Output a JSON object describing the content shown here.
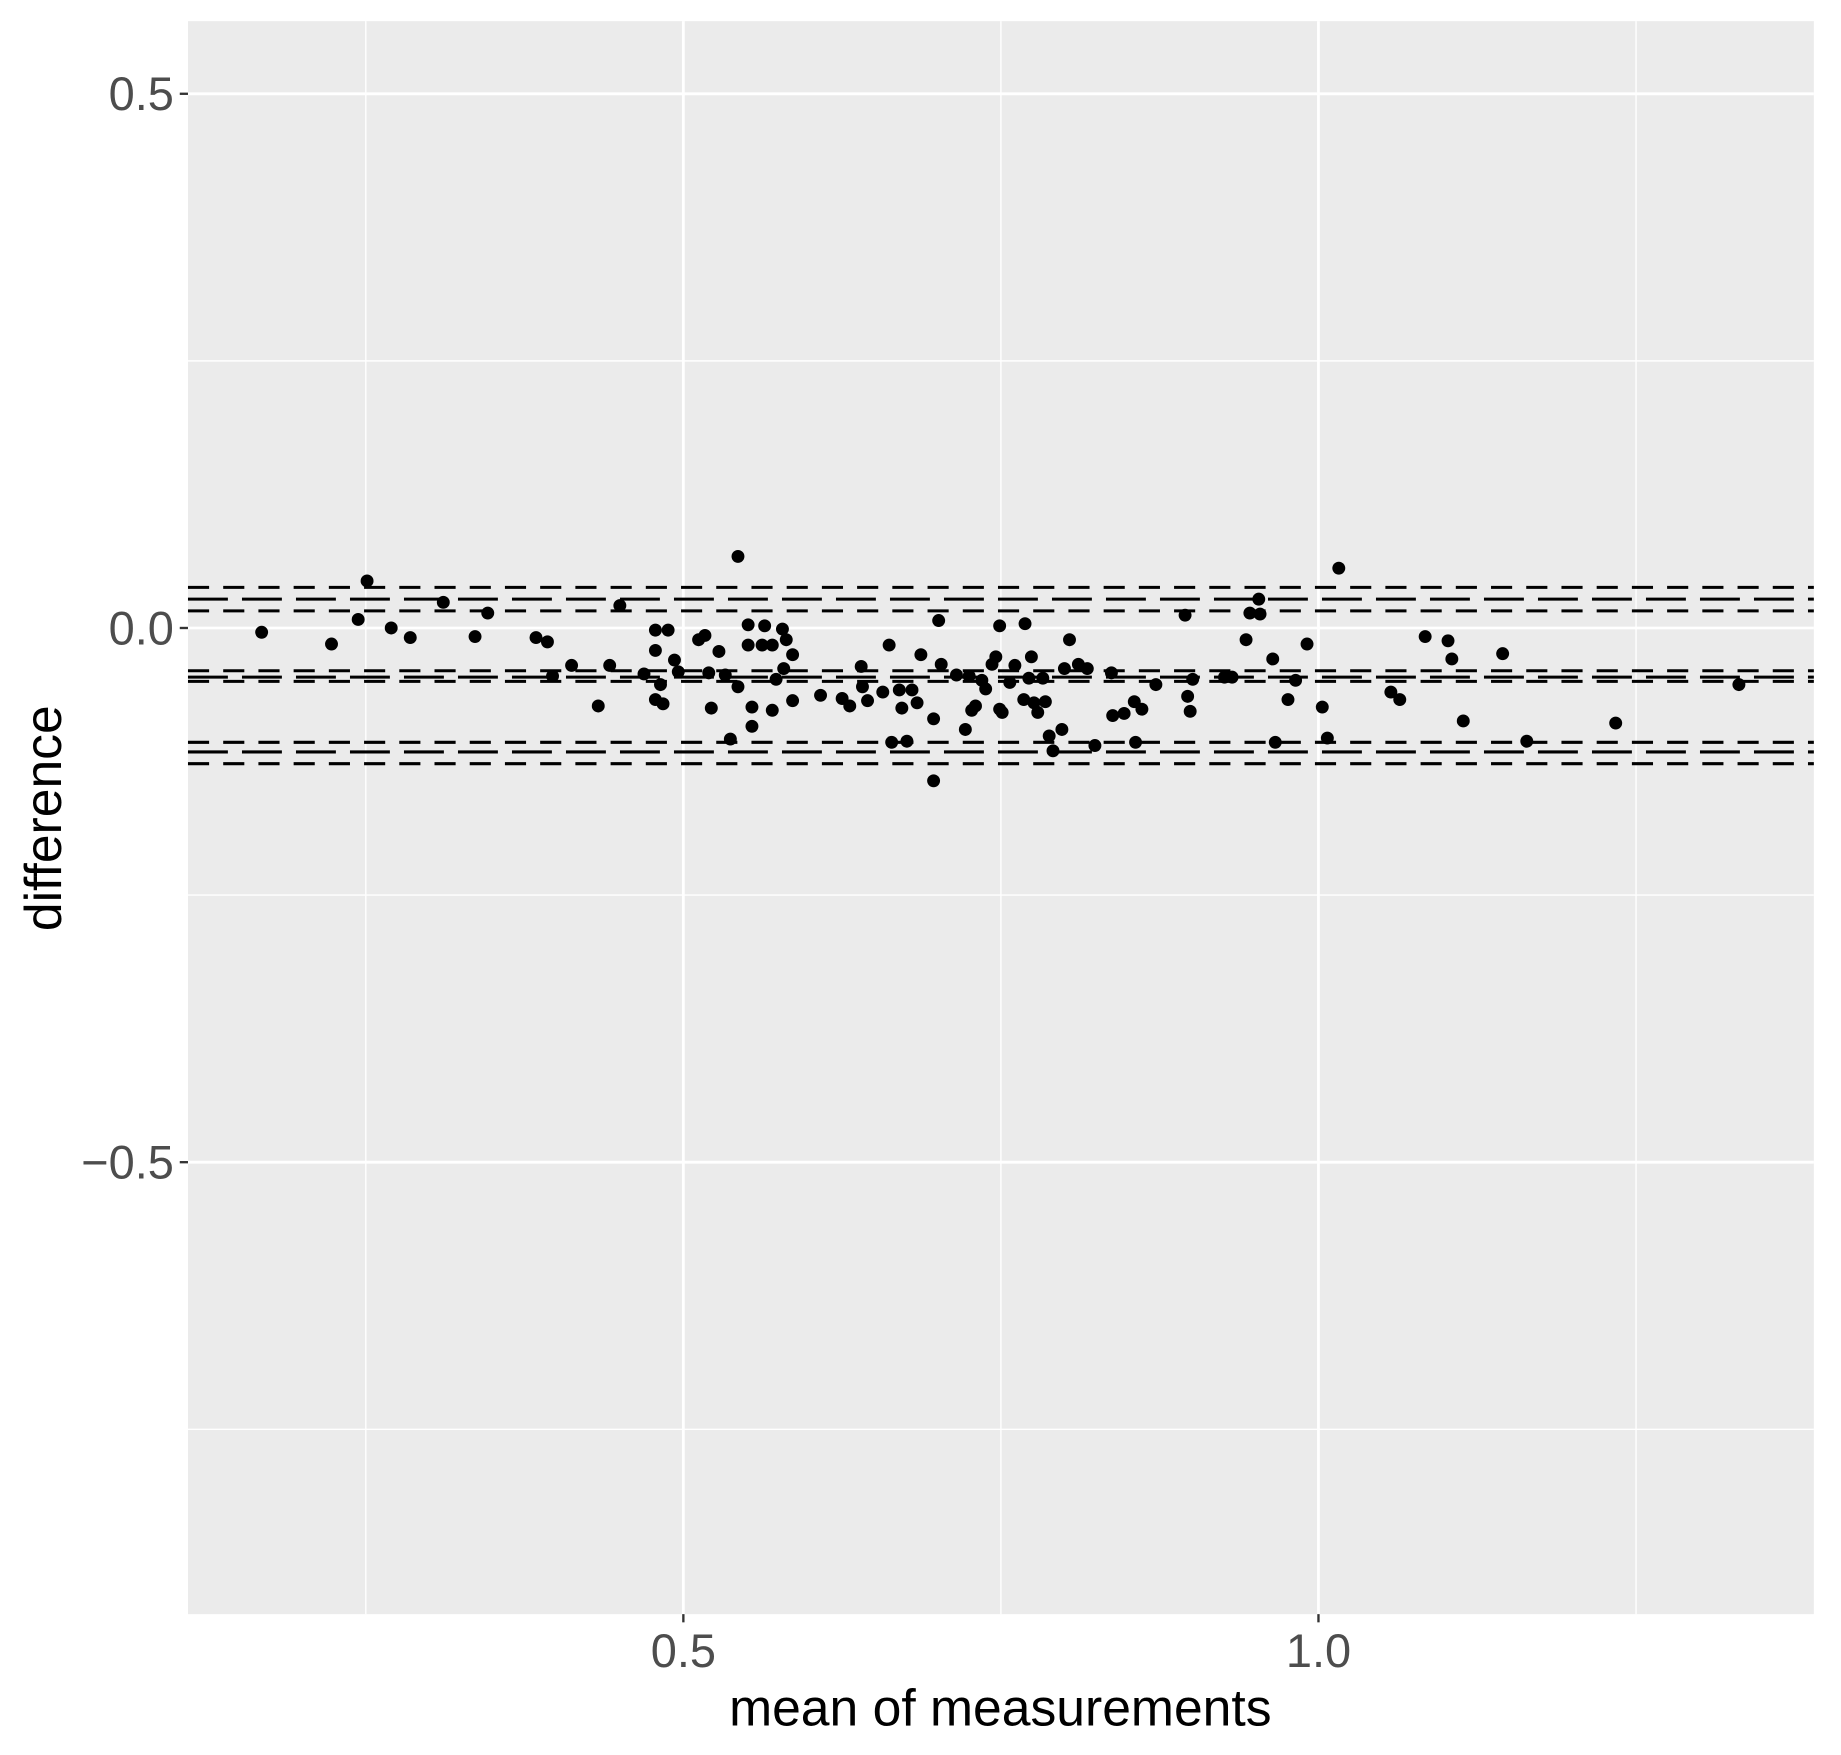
{
  "chart_data": {
    "type": "scatter",
    "x_label": "mean of measurements",
    "y_label": "difference",
    "xlim": [
      0.11,
      1.39
    ],
    "ylim": [
      -0.923,
      0.568
    ],
    "xticks": [
      0.5,
      {
        "value": 1,
        "label": "1.0"
      }
    ],
    "yticks": [
      {
        "value": -0.5,
        "label": "−0.5"
      },
      {
        "value": 0,
        "label": "0.0"
      },
      0.5
    ],
    "grid": true,
    "color": "#000000",
    "hlines": [
      {
        "value": 0.038,
        "dash": "dashed"
      },
      {
        "value": 0.027,
        "dash": "longdash"
      },
      {
        "value": 0.016,
        "dash": "dashed"
      },
      {
        "value": -0.04,
        "dash": "dashed"
      },
      {
        "value": -0.046,
        "dash": "longdash"
      },
      {
        "value": -0.05,
        "dash": "dashed"
      },
      {
        "value": -0.107,
        "dash": "dashed"
      },
      {
        "value": -0.116,
        "dash": "longdash"
      },
      {
        "value": -0.127,
        "dash": "dashed"
      }
    ],
    "x": [
      0.168,
      0.223,
      0.244,
      0.251,
      0.27,
      0.285,
      0.311,
      0.336,
      0.346,
      0.384,
      0.393,
      0.397,
      0.412,
      0.433,
      0.442,
      0.45,
      0.469,
      0.478,
      0.478,
      0.478,
      0.482,
      0.484,
      0.488,
      0.493,
      0.496,
      0.512,
      0.517,
      0.52,
      0.522,
      0.528,
      0.533,
      0.537,
      0.543,
      0.543,
      0.551,
      0.551,
      0.554,
      0.554,
      0.562,
      0.564,
      0.57,
      0.57,
      0.573,
      0.578,
      0.579,
      0.581,
      0.586,
      0.586,
      0.608,
      0.625,
      0.631,
      0.64,
      0.641,
      0.645,
      0.657,
      0.662,
      0.664,
      0.67,
      0.672,
      0.676,
      0.68,
      0.684,
      0.687,
      0.697,
      0.697,
      0.701,
      0.703,
      0.715,
      0.722,
      0.725,
      0.727,
      0.73,
      0.735,
      0.738,
      0.743,
      0.746,
      0.749,
      0.749,
      0.751,
      0.757,
      0.761,
      0.768,
      0.769,
      0.772,
      0.774,
      0.776,
      0.779,
      0.783,
      0.785,
      0.788,
      0.791,
      0.798,
      0.8,
      0.804,
      0.811,
      0.818,
      0.824,
      0.837,
      0.838,
      0.847,
      0.855,
      0.856,
      0.861,
      0.872,
      0.895,
      0.897,
      0.899,
      0.901,
      0.926,
      0.932,
      0.943,
      0.946,
      0.953,
      0.954,
      0.964,
      0.966,
      0.976,
      0.982,
      0.991,
      1.003,
      1.007,
      1.016,
      1.057,
      1.064,
      1.084,
      1.102,
      1.105,
      1.114,
      1.145,
      1.164,
      1.234,
      1.331
    ],
    "values": [
      -0.004,
      -0.015,
      0.008,
      0.044,
      0.0,
      -0.009,
      0.024,
      -0.008,
      0.014,
      -0.009,
      -0.013,
      -0.045,
      -0.035,
      -0.073,
      -0.035,
      0.021,
      -0.043,
      -0.002,
      -0.021,
      -0.067,
      -0.053,
      -0.071,
      -0.002,
      -0.03,
      -0.041,
      -0.011,
      -0.007,
      -0.042,
      -0.075,
      -0.022,
      -0.044,
      -0.104,
      0.067,
      -0.055,
      0.003,
      -0.016,
      -0.074,
      -0.092,
      -0.016,
      0.002,
      -0.016,
      -0.077,
      -0.048,
      -0.001,
      -0.038,
      -0.011,
      -0.025,
      -0.068,
      -0.063,
      -0.066,
      -0.073,
      -0.036,
      -0.055,
      -0.068,
      -0.06,
      -0.016,
      -0.107,
      -0.058,
      -0.075,
      -0.106,
      -0.058,
      -0.07,
      -0.025,
      -0.085,
      -0.143,
      0.007,
      -0.034,
      -0.044,
      -0.095,
      -0.045,
      -0.077,
      -0.073,
      -0.049,
      -0.057,
      -0.034,
      -0.027,
      -0.076,
      0.002,
      -0.079,
      -0.051,
      -0.035,
      -0.067,
      0.004,
      -0.047,
      -0.027,
      -0.07,
      -0.079,
      -0.047,
      -0.069,
      -0.101,
      -0.115,
      -0.095,
      -0.038,
      -0.011,
      -0.034,
      -0.038,
      -0.11,
      -0.042,
      -0.082,
      -0.08,
      -0.069,
      -0.107,
      -0.076,
      -0.053,
      0.012,
      -0.064,
      -0.078,
      -0.048,
      -0.046,
      -0.046,
      -0.011,
      0.014,
      0.027,
      0.013,
      -0.029,
      -0.107,
      -0.067,
      -0.049,
      -0.015,
      -0.074,
      -0.103,
      0.056,
      -0.06,
      -0.067,
      -0.008,
      -0.012,
      -0.029,
      -0.087,
      -0.024,
      -0.106,
      -0.089,
      -0.053
    ]
  }
}
